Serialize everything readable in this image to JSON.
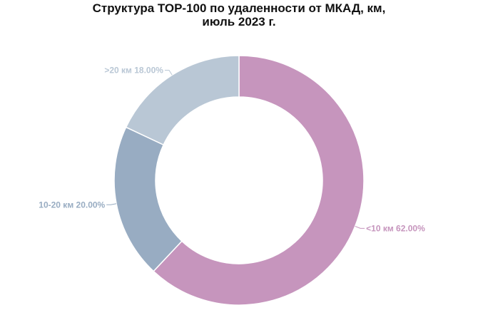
{
  "chart_data": {
    "type": "pie",
    "donut": true,
    "title_lines": [
      "Структура ТОР-100 по удаленности от МКАД, км,",
      "июль 2023 г."
    ],
    "slices": [
      {
        "label": "<10 км",
        "value": 62.0,
        "display": "62.00%",
        "color": "#c695bd"
      },
      {
        "label": "10-20 км",
        "value": 20.0,
        "display": "20.00%",
        "color": "#98acc2"
      },
      {
        "label": ">20 км",
        "value": 18.0,
        "display": "18.00%",
        "color": "#b9c7d5"
      }
    ]
  }
}
